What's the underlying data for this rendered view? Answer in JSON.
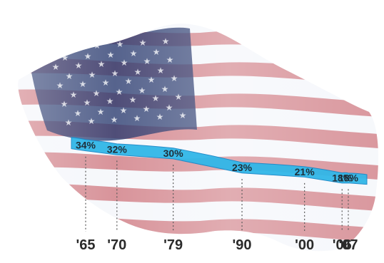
{
  "chart_data": {
    "type": "line",
    "title": "",
    "xlabel": "",
    "ylabel": "",
    "categories": [
      "'65",
      "'70",
      "'79",
      "'90",
      "'00",
      "'06",
      "'07"
    ],
    "x": [
      1965,
      1970,
      1979,
      1990,
      2000,
      2006,
      2007
    ],
    "values": [
      34,
      32,
      30,
      23,
      21,
      18,
      18
    ],
    "value_labels": [
      "34%",
      "32%",
      "30%",
      "23%",
      "21%",
      "18%",
      "18%"
    ],
    "ylim": [
      15,
      36
    ],
    "grid": false,
    "background": "waving American flag",
    "colors": {
      "line": "#31b7e8",
      "line_edge": "#1b88c8",
      "text": "#2a2a2a",
      "flag_red": "#c44d55",
      "flag_blue": "#1d2f66",
      "flag_white": "#f5f7fb"
    }
  }
}
